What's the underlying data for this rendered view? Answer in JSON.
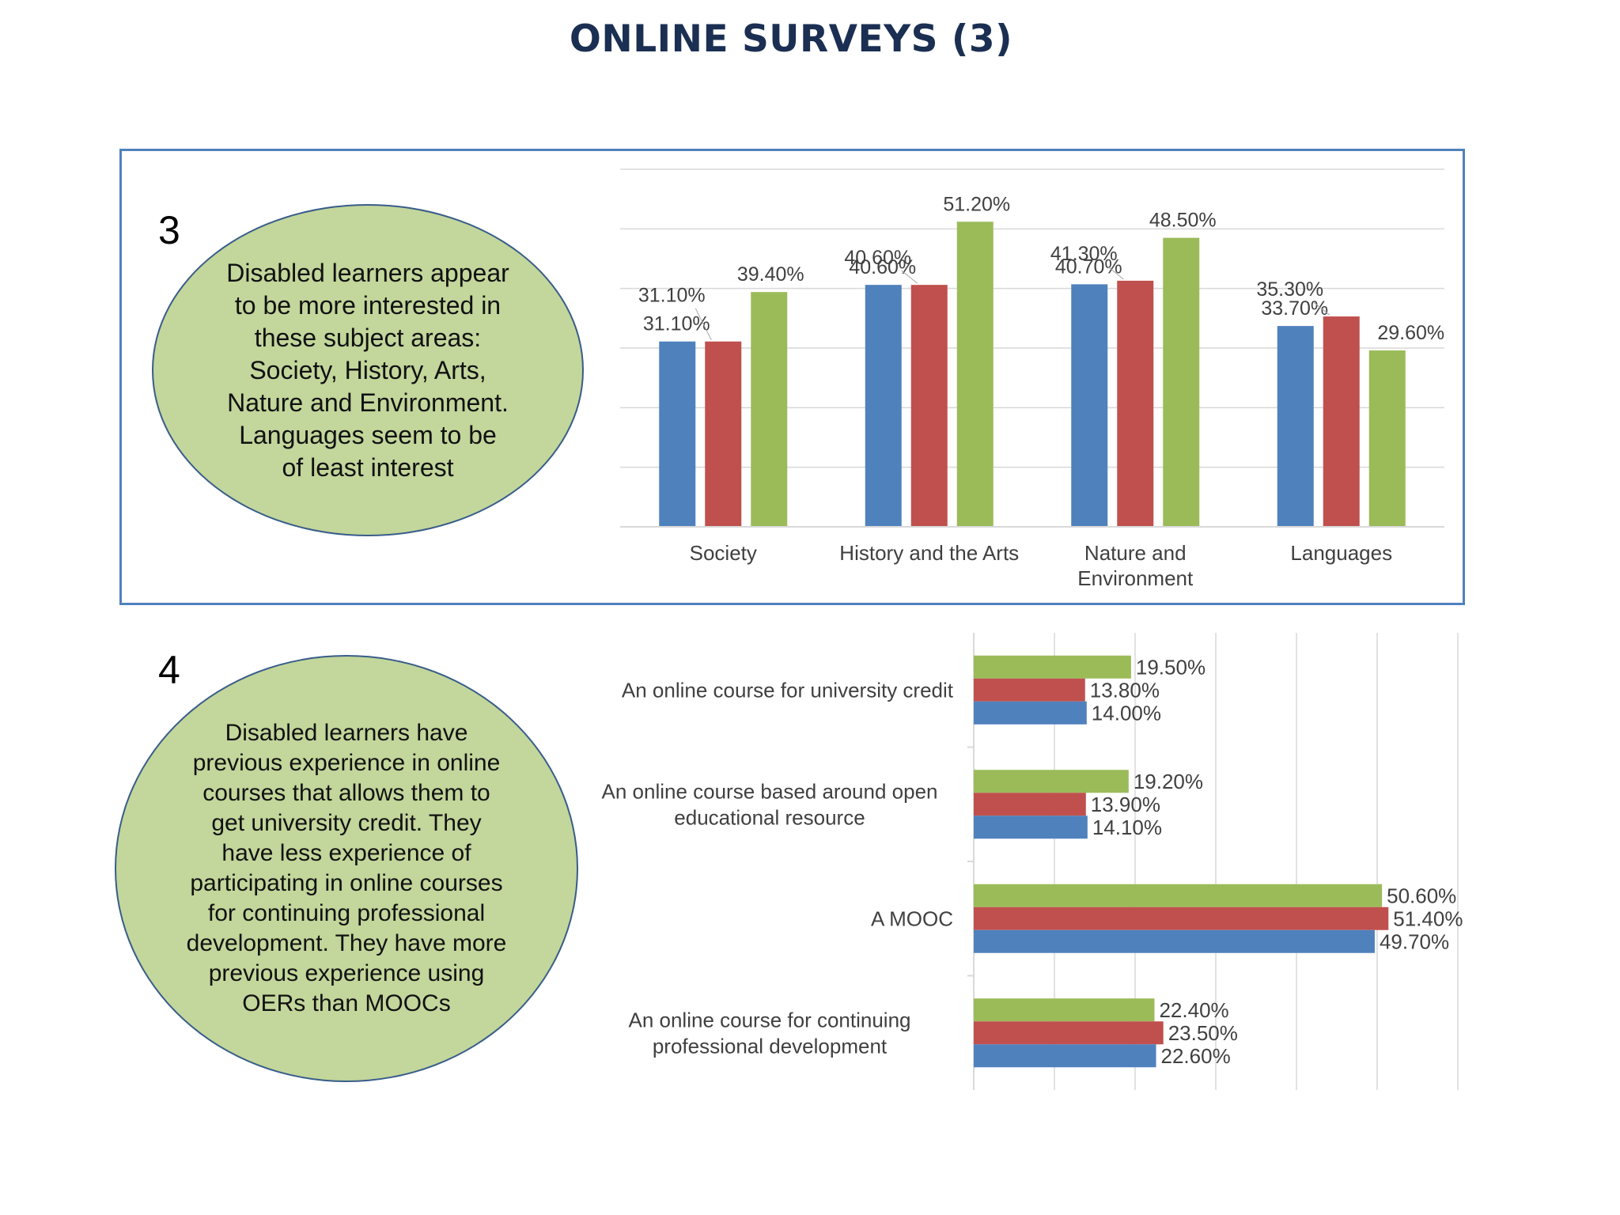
{
  "page": {
    "title": "ONLINE SURVEYS (3)"
  },
  "section3": {
    "number": "3",
    "note": "Disabled learners appear to be more interested in these subject areas: Society, History, Arts, Nature and Environment. Languages seem to be of least interest"
  },
  "section4": {
    "number": "4",
    "note": "Disabled learners have previous experience in online courses that allows them to get university credit. They have less experience of participating in online courses for continuing professional development. They have more previous experience using OERs than MOOCs"
  },
  "colors": {
    "blue": "#4f81bd",
    "red": "#c0504d",
    "green": "#9bbb59",
    "grid": "#d9d9d9",
    "text": "#404040",
    "frame": "#4f81bd",
    "ellipse_fill": "#c3d69b"
  },
  "chart_data": [
    {
      "type": "bar",
      "orientation": "vertical",
      "categories": [
        [
          "Society"
        ],
        [
          "History and the Arts"
        ],
        [
          "Nature and",
          "Environment"
        ],
        [
          "Languages"
        ]
      ],
      "series": [
        {
          "color": "blue",
          "values": [
            31.1,
            40.6,
            40.7,
            33.7
          ],
          "labels": [
            "31.10%",
            "40.60%",
            "40.70%",
            "33.70%"
          ]
        },
        {
          "color": "red",
          "values": [
            31.1,
            40.6,
            41.3,
            35.3
          ],
          "labels": [
            "31.10%",
            "40.60%",
            "41.30%",
            "35.30%"
          ]
        },
        {
          "color": "green",
          "values": [
            39.4,
            51.2,
            48.5,
            29.6
          ],
          "labels": [
            "39.40%",
            "51.20%",
            "48.50%",
            "29.60%"
          ]
        }
      ],
      "ylim": [
        0,
        60
      ],
      "grid": true,
      "legend": "none"
    },
    {
      "type": "bar",
      "orientation": "horizontal",
      "categories": [
        [
          "An online course for university credit"
        ],
        [
          "An online course based around open",
          "educational resource"
        ],
        [
          "A MOOC"
        ],
        [
          "An online course for continuing",
          "professional development"
        ]
      ],
      "series": [
        {
          "color": "green",
          "values": [
            19.5,
            19.2,
            50.6,
            22.4
          ],
          "labels": [
            "19.50%",
            "19.20%",
            "50.60%",
            "22.40%"
          ]
        },
        {
          "color": "red",
          "values": [
            13.8,
            13.9,
            51.4,
            23.5
          ],
          "labels": [
            "13.80%",
            "13.90%",
            "51.40%",
            "23.50%"
          ]
        },
        {
          "color": "blue",
          "values": [
            14.0,
            14.1,
            49.7,
            22.6
          ],
          "labels": [
            "14.00%",
            "14.10%",
            "49.70%",
            "22.60%"
          ]
        }
      ],
      "xlim": [
        0,
        60
      ],
      "grid": true,
      "legend": "none"
    }
  ]
}
